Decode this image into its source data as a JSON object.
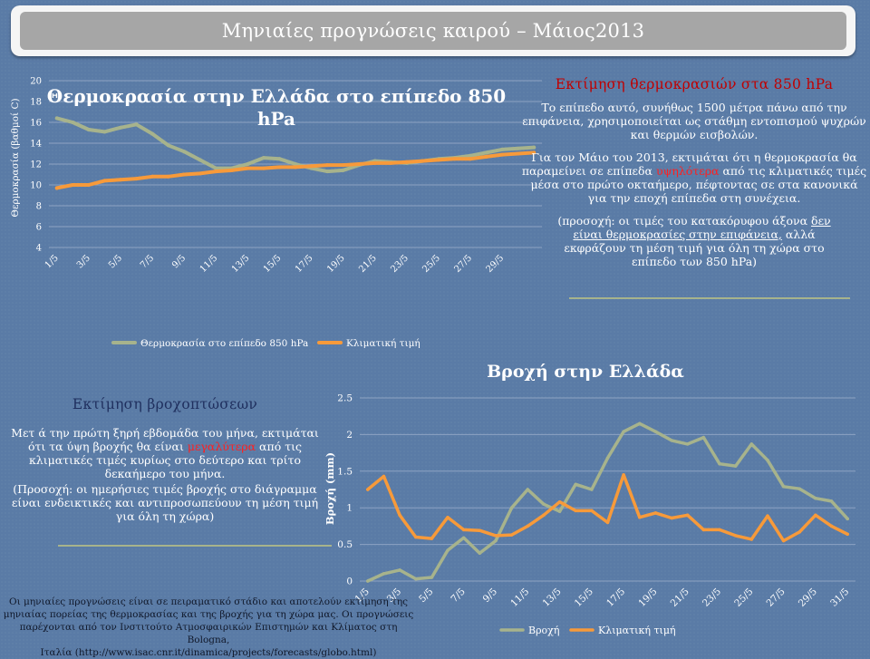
{
  "page": {
    "title": "Μηνιαίες προγνώσεις καιρού – Μάιος2013"
  },
  "colors": {
    "background": "#5a7ba6",
    "forecast_series": "#a7b38c",
    "climate_series": "#f79a3a",
    "heading_red": "#c00000",
    "highlight_red": "#ff2020",
    "heading_darkblue": "#1f2f5e",
    "source_text": "#10182a"
  },
  "temp_panel": {
    "heading": "Εκτίμηση θερμοκρασιών στα 850 hPa",
    "p1": "Το επίπεδο αυτό, συνήθως 1500 μέτρα πάνω από την επιφάνεια, χρησιμοποιείται ως στάθμη εντοπισμού ψυχρών και θερμών εισβολών.",
    "p2_before": "Για τον Μάιο του 2013, εκτιμάται ότι η θερμοκρασία θα παραμείνει σε επίπεδα",
    "p2_highlight": "υψηλότερα",
    "p2_after": "από τις κλιματικές τιμές μέσα στο πρώτο οκταήμερο, πέφτοντας σε στα κανονικά για την εποχή επίπεδα στη συνέχεια.",
    "note_start": "(προσοχή: οι τιμές του κατακόρυφου άξονα",
    "note_underlined": "δεν είναι θερμοκρασίες στην επιφάνεια,",
    "note_end": "αλλά εκφράζουν τη μέση τιμή για όλη τη χώρα στο επίπεδο των 850 hPa)"
  },
  "precip_panel": {
    "heading": "Εκτίμηση βροχοπτώσεων",
    "p1_before": "Μετ ά την πρώτη ξηρή εβδομάδα του μήνα, εκτιμάται ότι τα ύψη βροχής θα είναι",
    "p1_highlight": "μεγαλύτερα",
    "p1_after": "από τις κλιματικές τιμές κυρίως στο δεύτερο και τρίτο δεκαήμερο του μήνα.",
    "note": "(Προσοχή: οι ημερήσιες τιμές βροχής στο διάγραμμα είναι ενδεικτικές και αντιπροσωπεύουν τη μέση τιμή για όλη τη χώρα)"
  },
  "source": {
    "line1": "Οι μηνιαίες προγνώσεις είναι σε πειραματικό στάδιο και αποτελούν εκτίμηση της",
    "line2": "μηνιαίας πορείας της θερμοκρασίας και της βροχής για τη χώρα μας. Οι προγνώσεις",
    "line3": "παρέχονται από τον Ινστιτούτο Ατμοσφαιρικών Επιστημών και Κλίματος στη Bologna,",
    "line4": "Ιταλία (http://www.isac.cnr.it/dinamica/projects/forecasts/globo.html)"
  },
  "chart_data": [
    {
      "id": "temperature",
      "type": "line",
      "title": "Θερμοκρασία στην Ελλάδα στο επίπεδο 850 hPa",
      "ylabel": "Θερμοκρασία (βαθμοί C)",
      "ylim": [
        4,
        20
      ],
      "yticks": [
        "4",
        "6",
        "8",
        "10",
        "12",
        "14",
        "16",
        "18",
        "20"
      ],
      "grid": true,
      "legend_position": "bottom",
      "categories": [
        "1/5",
        "2/5",
        "3/5",
        "4/5",
        "5/5",
        "6/5",
        "7/5",
        "8/5",
        "9/5",
        "10/5",
        "11/5",
        "12/5",
        "13/5",
        "14/5",
        "15/5",
        "16/5",
        "17/5",
        "18/5",
        "19/5",
        "20/5",
        "21/5",
        "22/5",
        "23/5",
        "24/5",
        "25/5",
        "26/5",
        "27/5",
        "28/5",
        "29/5",
        "30/5",
        "31/5"
      ],
      "tick_labels": [
        "1/5",
        "3/5",
        "5/5",
        "7/5",
        "9/5",
        "11/5",
        "13/5",
        "15/5",
        "17/5",
        "19/5",
        "21/5",
        "23/5",
        "25/5",
        "27/5",
        "29/5"
      ],
      "series": [
        {
          "name": "Θερμοκρασία στο επίπεδο 850 hPa",
          "color": "#a7b38c",
          "values": [
            16.4,
            16.0,
            15.3,
            15.1,
            15.5,
            15.8,
            14.9,
            13.8,
            13.2,
            12.4,
            11.6,
            11.6,
            12.0,
            12.6,
            12.5,
            12.0,
            11.6,
            11.3,
            11.4,
            11.9,
            12.3,
            12.2,
            12.1,
            12.3,
            12.5,
            12.6,
            12.8,
            13.1,
            13.4,
            13.5,
            13.6
          ]
        },
        {
          "name": "Κλιματική τιμή",
          "color": "#f79a3a",
          "values": [
            9.7,
            10.0,
            10.0,
            10.4,
            10.5,
            10.6,
            10.8,
            10.8,
            11.0,
            11.1,
            11.3,
            11.4,
            11.6,
            11.6,
            11.7,
            11.7,
            11.8,
            11.9,
            11.9,
            12.0,
            12.1,
            12.1,
            12.2,
            12.3,
            12.4,
            12.5,
            12.5,
            12.7,
            12.9,
            13.0,
            13.1
          ]
        }
      ]
    },
    {
      "id": "precipitation",
      "type": "line",
      "title": "Βροχή στην Ελλάδα",
      "ylabel": "Βροχή (mm)",
      "ylim": [
        0,
        2.5
      ],
      "yticks": [
        "0",
        "0.5",
        "1",
        "1.5",
        "2",
        "2.5"
      ],
      "grid": true,
      "legend_position": "bottom",
      "categories": [
        "1/5",
        "2/5",
        "3/5",
        "4/5",
        "5/5",
        "6/5",
        "7/5",
        "8/5",
        "9/5",
        "10/5",
        "11/5",
        "12/5",
        "13/5",
        "14/5",
        "15/5",
        "16/5",
        "17/5",
        "18/5",
        "19/5",
        "20/5",
        "21/5",
        "22/5",
        "23/5",
        "24/5",
        "25/5",
        "26/5",
        "27/5",
        "28/5",
        "29/5",
        "30/5",
        "31/5"
      ],
      "tick_labels": [
        "1/5",
        "3/5",
        "5/5",
        "7/5",
        "9/5",
        "11/5",
        "13/5",
        "15/5",
        "17/5",
        "19/5",
        "21/5",
        "23/5",
        "25/5",
        "27/5",
        "29/5",
        "31/5"
      ],
      "series": [
        {
          "name": "Βροχή",
          "color": "#a7b38c",
          "values": [
            0.0,
            0.1,
            0.15,
            0.03,
            0.05,
            0.42,
            0.59,
            0.38,
            0.55,
            1.0,
            1.25,
            1.05,
            0.95,
            1.32,
            1.25,
            1.68,
            2.04,
            2.15,
            2.04,
            1.92,
            1.87,
            1.96,
            1.6,
            1.57,
            1.87,
            1.65,
            1.29,
            1.26,
            1.13,
            1.09,
            0.85
          ]
        },
        {
          "name": "Κλιματική τιμή",
          "color": "#f79a3a",
          "values": [
            1.25,
            1.43,
            0.9,
            0.6,
            0.58,
            0.87,
            0.7,
            0.69,
            0.62,
            0.63,
            0.75,
            0.9,
            1.08,
            0.96,
            0.96,
            0.8,
            1.45,
            0.87,
            0.93,
            0.86,
            0.9,
            0.7,
            0.7,
            0.62,
            0.57,
            0.89,
            0.55,
            0.67,
            0.9,
            0.75,
            0.64
          ]
        }
      ]
    }
  ]
}
